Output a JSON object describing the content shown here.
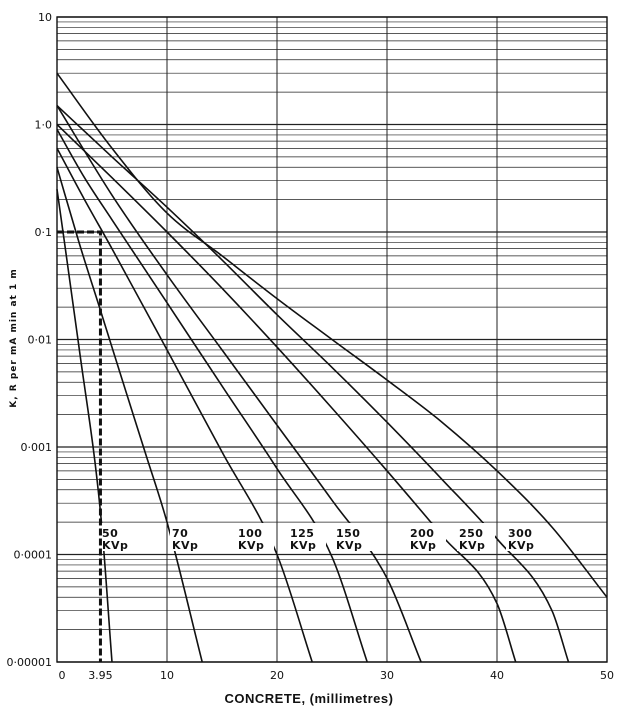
{
  "chart_data": {
    "type": "line",
    "title": "",
    "xlabel": "CONCRETE, (millimetres)",
    "ylabel": "K, R per mA min at 1 m",
    "xlim": [
      0,
      50
    ],
    "ylim": [
      1e-05,
      10
    ],
    "yscale": "log",
    "grid": true,
    "x_ticks": [
      "0",
      "10",
      "20",
      "30",
      "40",
      "50"
    ],
    "y_ticks": [
      "0·00001",
      "0·0001",
      "0·001",
      "0·01",
      "0·1",
      "1·0",
      "10"
    ],
    "series": [
      {
        "name": "50 KVp",
        "x": [
          0,
          2,
          4,
          5
        ],
        "y": [
          0.25,
          0.0085,
          0.00022,
          1e-05
        ]
      },
      {
        "name": "70 KVp",
        "x": [
          0,
          2,
          4,
          6,
          8,
          10,
          13.2
        ],
        "y": [
          0.4,
          0.08,
          0.018,
          0.004,
          0.0009,
          0.0002,
          1e-05
        ]
      },
      {
        "name": "100 KVp",
        "x": [
          0,
          2.5,
          5,
          10,
          15,
          20,
          23.2
        ],
        "y": [
          0.6,
          0.2,
          0.07,
          0.008,
          0.0009,
          0.0001,
          1e-05
        ]
      },
      {
        "name": "125 KVp",
        "x": [
          0,
          2.5,
          5,
          10,
          15,
          20,
          25,
          28.2
        ],
        "y": [
          0.9,
          0.32,
          0.13,
          0.022,
          0.0037,
          0.00063,
          9.5e-05,
          1e-05
        ]
      },
      {
        "name": "150 KVp",
        "x": [
          0,
          5,
          10,
          15,
          20,
          25,
          30,
          33.1
        ],
        "y": [
          1.5,
          0.22,
          0.04,
          0.008,
          0.0016,
          0.00032,
          6e-05,
          1e-05
        ]
      },
      {
        "name": "200 KVp",
        "x": [
          0,
          5,
          10,
          15,
          20,
          25,
          30,
          35,
          40,
          41.7
        ],
        "y": [
          1.0,
          0.32,
          0.1,
          0.03,
          0.0085,
          0.0023,
          0.0006,
          0.00015,
          3.5e-05,
          1e-05
        ]
      },
      {
        "name": "250 KVp",
        "x": [
          0,
          5,
          10,
          15,
          20,
          25,
          30,
          35,
          40,
          45,
          46.5
        ],
        "y": [
          1.5,
          0.5,
          0.17,
          0.055,
          0.017,
          0.0055,
          0.0017,
          0.0005,
          0.00014,
          3e-05,
          1e-05
        ]
      },
      {
        "name": "300 KVp",
        "x": [
          0,
          5,
          10,
          15,
          20,
          25,
          30,
          35,
          40,
          45,
          50
        ],
        "y": [
          3.0,
          0.6,
          0.15,
          0.06,
          0.024,
          0.01,
          0.0042,
          0.0017,
          0.0006,
          0.00018,
          4e-05
        ]
      }
    ],
    "annotations": [
      {
        "type": "reference-line",
        "x": 3.95,
        "y": 0.1,
        "text": "3.95"
      }
    ]
  }
}
